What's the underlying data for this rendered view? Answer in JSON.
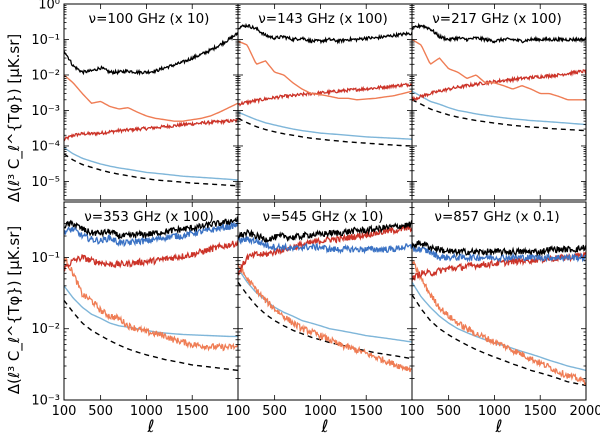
{
  "chart_data": {
    "type": "line",
    "ylabel": "Δ(ℓ³ C_ℓ^{Tφ})  [μK.sr]",
    "xlabel": "ℓ",
    "xlim": [
      100,
      2000
    ],
    "x_ticks": [
      "100",
      "500",
      "1000",
      "1500",
      "2000"
    ],
    "log_y": true,
    "rows": [
      {
        "ylim": [
          3e-06,
          1.0
        ],
        "y_ticks": [
          "10⁰",
          "10⁻¹",
          "10⁻²",
          "10⁻³",
          "10⁻⁴",
          "10⁻⁵"
        ],
        "y_tick_values": [
          1,
          0.1,
          0.01,
          0.001,
          0.0001,
          1e-05
        ]
      },
      {
        "ylim": [
          0.001,
          0.6
        ],
        "y_ticks": [
          "10⁻¹",
          "10⁻²",
          "10⁻³"
        ],
        "y_tick_values": [
          0.1,
          0.01,
          0.001
        ]
      }
    ],
    "x": [
      100,
      200,
      300,
      400,
      500,
      600,
      700,
      800,
      900,
      1000,
      1100,
      1200,
      1300,
      1400,
      1500,
      1600,
      1700,
      1800,
      1900,
      2000
    ],
    "panels": [
      {
        "title": "ν=100 GHz  (x 10)",
        "series": [
          {
            "color": "#000000",
            "style": "noisy",
            "values": [
              0.05,
              0.018,
              0.012,
              0.013,
              0.016,
              0.012,
              0.012,
              0.013,
              0.012,
              0.012,
              0.013,
              0.016,
              0.019,
              0.023,
              0.03,
              0.038,
              0.05,
              0.07,
              0.1,
              0.15
            ]
          },
          {
            "color": "#ef7d55",
            "style": "solid",
            "values": [
              0.01,
              0.006,
              0.003,
              0.0016,
              0.0018,
              0.0013,
              0.0011,
              0.0012,
              0.0009,
              0.0007,
              0.0006,
              0.00055,
              0.0005,
              0.0005,
              0.00055,
              0.0006,
              0.0007,
              0.0009,
              0.0012,
              0.0016
            ]
          },
          {
            "color": "#cc3328",
            "style": "noisy",
            "values": [
              0.00015,
              0.0002,
              0.00022,
              0.00022,
              0.00023,
              0.00025,
              0.00027,
              0.00028,
              0.0003,
              0.00031,
              0.00033,
              0.00035,
              0.00037,
              0.0004,
              0.00042,
              0.00044,
              0.00046,
              0.00048,
              0.0005,
              0.00052
            ]
          },
          {
            "color": "#7fb6d9",
            "style": "solid",
            "values": [
              9e-05,
              6e-05,
              4.5e-05,
              3.7e-05,
              3.1e-05,
              2.7e-05,
              2.4e-05,
              2.2e-05,
              2e-05,
              1.8e-05,
              1.7e-05,
              1.6e-05,
              1.5e-05,
              1.4e-05,
              1.35e-05,
              1.3e-05,
              1.25e-05,
              1.2e-05,
              1.15e-05,
              1.1e-05
            ]
          },
          {
            "color": "#000000",
            "style": "dashed",
            "values": [
              6e-05,
              4e-05,
              3e-05,
              2.5e-05,
              2.1e-05,
              1.8e-05,
              1.6e-05,
              1.45e-05,
              1.3e-05,
              1.2e-05,
              1.1e-05,
              1.05e-05,
              1e-05,
              9.5e-06,
              9e-06,
              8.7e-06,
              8.4e-06,
              8.1e-06,
              7.8e-06,
              7.5e-06
            ]
          }
        ]
      },
      {
        "title": "ν=143 GHz  (x 100)",
        "series": [
          {
            "color": "#000000",
            "style": "noisy",
            "values": [
              0.22,
              0.25,
              0.2,
              0.13,
              0.11,
              0.12,
              0.1,
              0.11,
              0.09,
              0.09,
              0.1,
              0.09,
              0.1,
              0.1,
              0.11,
              0.11,
              0.12,
              0.13,
              0.14,
              0.15
            ]
          },
          {
            "color": "#ef7d55",
            "style": "solid",
            "values": [
              0.09,
              0.07,
              0.02,
              0.025,
              0.012,
              0.01,
              0.006,
              0.004,
              0.003,
              0.0028,
              0.0025,
              0.0022,
              0.0022,
              0.002,
              0.0021,
              0.0022,
              0.0024,
              0.0026,
              0.003,
              0.0035
            ]
          },
          {
            "color": "#cc3328",
            "style": "noisy",
            "values": [
              0.0015,
              0.0017,
              0.0019,
              0.0021,
              0.0023,
              0.0025,
              0.0026,
              0.0028,
              0.003,
              0.0031,
              0.0033,
              0.0035,
              0.0037,
              0.0039,
              0.0041,
              0.0043,
              0.0046,
              0.0049,
              0.0052,
              0.0055
            ]
          },
          {
            "color": "#7fb6d9",
            "style": "solid",
            "values": [
              0.0009,
              0.0007,
              0.00055,
              0.00045,
              0.00039,
              0.00034,
              0.0003,
              0.00027,
              0.00025,
              0.00023,
              0.00022,
              0.00021,
              0.0002,
              0.00019,
              0.00018,
              0.000175,
              0.00017,
              0.000165,
              0.00016,
              0.000155
            ]
          },
          {
            "color": "#000000",
            "style": "dashed",
            "values": [
              0.0006,
              0.00045,
              0.00035,
              0.00029,
              0.00025,
              0.00022,
              0.0002,
              0.00018,
              0.000165,
              0.000155,
              0.000145,
              0.000138,
              0.00013,
              0.000125,
              0.00012,
              0.000115,
              0.00011,
              0.000106,
              0.000102,
              0.0001
            ]
          }
        ]
      },
      {
        "title": "ν=217 GHz  (x 100)",
        "series": [
          {
            "color": "#000000",
            "style": "noisy",
            "values": [
              0.2,
              0.25,
              0.2,
              0.12,
              0.1,
              0.11,
              0.1,
              0.11,
              0.1,
              0.09,
              0.1,
              0.1,
              0.09,
              0.1,
              0.1,
              0.1,
              0.1,
              0.1,
              0.1,
              0.1
            ]
          },
          {
            "color": "#ef7d55",
            "style": "solid",
            "values": [
              0.1,
              0.07,
              0.02,
              0.03,
              0.015,
              0.012,
              0.008,
              0.01,
              0.006,
              0.006,
              0.005,
              0.004,
              0.005,
              0.004,
              0.003,
              0.003,
              0.0025,
              0.002,
              0.002,
              0.002
            ]
          },
          {
            "color": "#cc3328",
            "style": "noisy",
            "values": [
              0.002,
              0.0025,
              0.003,
              0.0035,
              0.004,
              0.0045,
              0.005,
              0.0055,
              0.006,
              0.0065,
              0.007,
              0.0075,
              0.008,
              0.0085,
              0.009,
              0.0095,
              0.01,
              0.011,
              0.012,
              0.013
            ]
          },
          {
            "color": "#7fb6d9",
            "style": "solid",
            "values": [
              0.0035,
              0.0025,
              0.0018,
              0.0015,
              0.0012,
              0.001,
              0.0009,
              0.0008,
              0.00073,
              0.00067,
              0.00062,
              0.00058,
              0.00055,
              0.00052,
              0.0005,
              0.00048,
              0.00046,
              0.00044,
              0.00042,
              0.0004
            ]
          },
          {
            "color": "#000000",
            "style": "dashed",
            "values": [
              0.002,
              0.0015,
              0.0011,
              0.0009,
              0.00075,
              0.00065,
              0.00058,
              0.00052,
              0.00048,
              0.00044,
              0.00041,
              0.00038,
              0.00036,
              0.00034,
              0.00033,
              0.00031,
              0.0003,
              0.00029,
              0.00028,
              0.00027
            ]
          }
        ]
      },
      {
        "title": "ν=353 GHz  (x 100)",
        "series": [
          {
            "color": "#000000",
            "style": "noisy",
            "values": [
              0.28,
              0.3,
              0.25,
              0.22,
              0.22,
              0.23,
              0.2,
              0.2,
              0.21,
              0.21,
              0.22,
              0.23,
              0.24,
              0.25,
              0.26,
              0.27,
              0.29,
              0.3,
              0.32,
              0.34
            ]
          },
          {
            "color": "#3a72c4",
            "style": "noisy",
            "values": [
              0.23,
              0.25,
              0.2,
              0.18,
              0.17,
              0.19,
              0.16,
              0.16,
              0.17,
              0.17,
              0.18,
              0.19,
              0.2,
              0.2,
              0.22,
              0.23,
              0.24,
              0.26,
              0.27,
              0.29
            ]
          },
          {
            "color": "#cc3328",
            "style": "noisy",
            "values": [
              0.07,
              0.09,
              0.1,
              0.09,
              0.085,
              0.08,
              0.08,
              0.082,
              0.085,
              0.088,
              0.09,
              0.095,
              0.1,
              0.105,
              0.11,
              0.12,
              0.13,
              0.14,
              0.15,
              0.16
            ]
          },
          {
            "color": "#ef7d55",
            "style": "noisy",
            "values": [
              0.1,
              0.06,
              0.03,
              0.025,
              0.018,
              0.015,
              0.014,
              0.011,
              0.01,
              0.009,
              0.0085,
              0.008,
              0.007,
              0.0065,
              0.006,
              0.0058,
              0.0056,
              0.0055,
              0.0055,
              0.0056
            ]
          },
          {
            "color": "#7fb6d9",
            "style": "solid",
            "values": [
              0.04,
              0.027,
              0.02,
              0.016,
              0.014,
              0.012,
              0.011,
              0.0105,
              0.01,
              0.0095,
              0.009,
              0.0087,
              0.0085,
              0.0083,
              0.0082,
              0.0081,
              0.008,
              0.0079,
              0.0078,
              0.0078
            ]
          },
          {
            "color": "#000000",
            "style": "dashed",
            "values": [
              0.025,
              0.017,
              0.012,
              0.0095,
              0.008,
              0.0068,
              0.0059,
              0.0052,
              0.0047,
              0.0043,
              0.004,
              0.0037,
              0.0035,
              0.0033,
              0.0031,
              0.003,
              0.0029,
              0.0028,
              0.0027,
              0.0026
            ]
          }
        ]
      },
      {
        "title": "ν=545 GHz  (x 10)",
        "series": [
          {
            "color": "#000000",
            "style": "noisy",
            "values": [
              0.2,
              0.22,
              0.2,
              0.18,
              0.19,
              0.2,
              0.19,
              0.2,
              0.21,
              0.21,
              0.22,
              0.22,
              0.23,
              0.24,
              0.24,
              0.25,
              0.26,
              0.27,
              0.28,
              0.29
            ]
          },
          {
            "color": "#3a72c4",
            "style": "noisy",
            "values": [
              0.17,
              0.18,
              0.17,
              0.15,
              0.14,
              0.14,
              0.13,
              0.14,
              0.14,
              0.14,
              0.13,
              0.13,
              0.13,
              0.13,
              0.13,
              0.13,
              0.13,
              0.13,
              0.14,
              0.14
            ]
          },
          {
            "color": "#cc3328",
            "style": "noisy",
            "values": [
              0.06,
              0.1,
              0.11,
              0.11,
              0.12,
              0.13,
              0.14,
              0.15,
              0.16,
              0.17,
              0.18,
              0.18,
              0.19,
              0.2,
              0.21,
              0.22,
              0.23,
              0.24,
              0.25,
              0.26
            ]
          },
          {
            "color": "#ef7d55",
            "style": "noisy",
            "values": [
              0.08,
              0.05,
              0.035,
              0.025,
              0.019,
              0.015,
              0.012,
              0.01,
              0.009,
              0.008,
              0.007,
              0.006,
              0.0055,
              0.005,
              0.0045,
              0.004,
              0.0036,
              0.0032,
              0.0029,
              0.0027
            ]
          },
          {
            "color": "#7fb6d9",
            "style": "solid",
            "values": [
              0.07,
              0.045,
              0.032,
              0.025,
              0.02,
              0.017,
              0.015,
              0.013,
              0.012,
              0.011,
              0.01,
              0.0095,
              0.009,
              0.0085,
              0.008,
              0.0077,
              0.0074,
              0.0071,
              0.0068,
              0.0065
            ]
          },
          {
            "color": "#000000",
            "style": "dashed",
            "values": [
              0.045,
              0.03,
              0.021,
              0.016,
              0.013,
              0.011,
              0.0095,
              0.0085,
              0.0076,
              0.007,
              0.0064,
              0.006,
              0.0056,
              0.0052,
              0.0049,
              0.0046,
              0.0044,
              0.0042,
              0.004,
              0.0038
            ]
          }
        ]
      },
      {
        "title": "ν=857 GHz  (x 0.1)",
        "series": [
          {
            "color": "#000000",
            "style": "noisy",
            "values": [
              0.15,
              0.16,
              0.14,
              0.13,
              0.12,
              0.12,
              0.12,
              0.12,
              0.12,
              0.12,
              0.12,
              0.12,
              0.12,
              0.12,
              0.12,
              0.13,
              0.13,
              0.13,
              0.13,
              0.14
            ]
          },
          {
            "color": "#3a72c4",
            "style": "noisy",
            "values": [
              0.13,
              0.13,
              0.12,
              0.1,
              0.1,
              0.1,
              0.1,
              0.1,
              0.1,
              0.1,
              0.1,
              0.1,
              0.1,
              0.1,
              0.1,
              0.1,
              0.1,
              0.1,
              0.1,
              0.1
            ]
          },
          {
            "color": "#cc3328",
            "style": "noisy",
            "values": [
              0.05,
              0.06,
              0.06,
              0.065,
              0.07,
              0.072,
              0.075,
              0.078,
              0.08,
              0.082,
              0.085,
              0.087,
              0.09,
              0.092,
              0.094,
              0.096,
              0.098,
              0.1,
              0.105,
              0.11
            ]
          },
          {
            "color": "#ef7d55",
            "style": "noisy",
            "values": [
              0.09,
              0.05,
              0.03,
              0.02,
              0.015,
              0.012,
              0.01,
              0.0085,
              0.0075,
              0.0065,
              0.0058,
              0.005,
              0.0044,
              0.0038,
              0.0033,
              0.0029,
              0.0025,
              0.0022,
              0.002,
              0.0018
            ]
          },
          {
            "color": "#7fb6d9",
            "style": "solid",
            "values": [
              0.045,
              0.028,
              0.02,
              0.015,
              0.012,
              0.01,
              0.0088,
              0.0078,
              0.007,
              0.0063,
              0.0058,
              0.0053,
              0.0048,
              0.0044,
              0.004,
              0.0036,
              0.0033,
              0.003,
              0.0028,
              0.0026
            ]
          },
          {
            "color": "#000000",
            "style": "dashed",
            "values": [
              0.03,
              0.019,
              0.013,
              0.01,
              0.0082,
              0.0069,
              0.0059,
              0.0051,
              0.0045,
              0.004,
              0.0036,
              0.0032,
              0.0029,
              0.0026,
              0.0024,
              0.0022,
              0.002,
              0.0018,
              0.0017,
              0.0016
            ]
          }
        ]
      }
    ]
  }
}
